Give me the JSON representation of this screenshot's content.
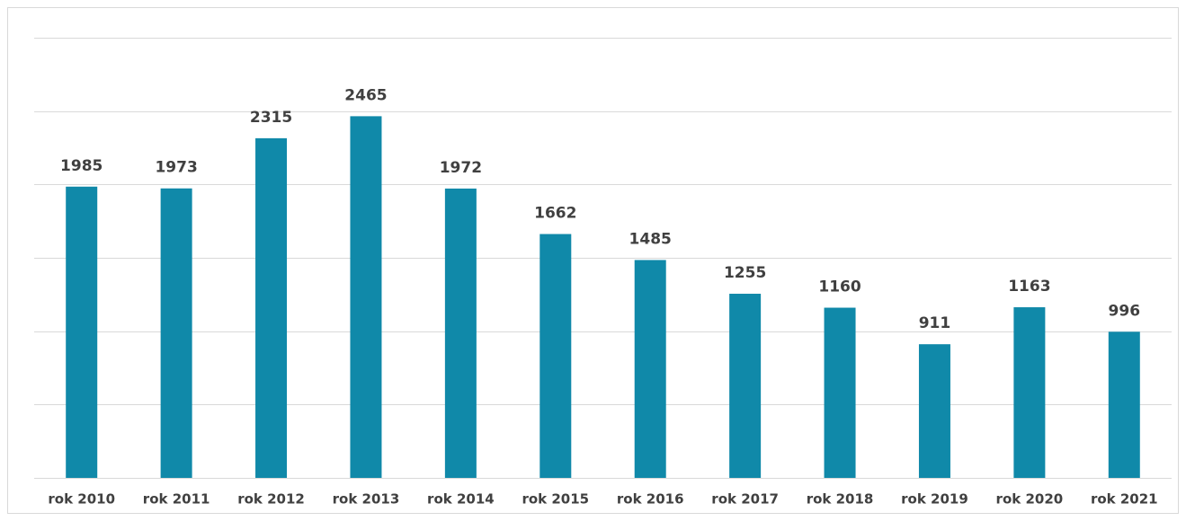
{
  "chart_data": {
    "type": "bar",
    "categories": [
      "rok 2010",
      "rok 2011",
      "rok 2012",
      "rok 2013",
      "rok 2014",
      "rok 2015",
      "rok 2016",
      "rok 2017",
      "rok 2018",
      "rok 2019",
      "rok 2020",
      "rok 2021"
    ],
    "values": [
      1985,
      1973,
      2315,
      2465,
      1972,
      1662,
      1485,
      1255,
      1160,
      911,
      1163,
      996
    ],
    "color": "#1089a9",
    "ylim": [
      0,
      3000
    ],
    "yticks": [
      0,
      500,
      1000,
      1500,
      2000,
      2500,
      3000
    ],
    "grid": true
  }
}
